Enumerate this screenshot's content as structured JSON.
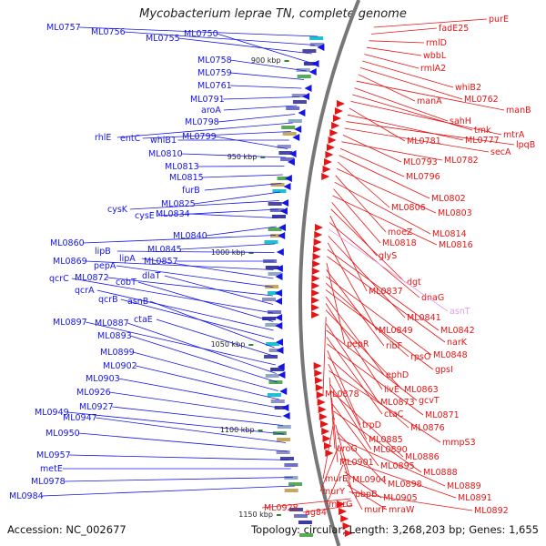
{
  "title": "Mycobacterium leprae TN, complete genome",
  "footer": {
    "accession": "Accession: NC_002677",
    "summary": "Topology: circular; Length: 3,268,203 bp; Genes: 1,655"
  },
  "colors": {
    "minus_strand": "#1414e6",
    "plus_strand": "#e61414",
    "backbone": "#777777",
    "scale_tick": "#2a8a2a"
  },
  "scale_labels": [
    "900 kbp",
    "950 kbp",
    "1000 kbp",
    "1050 kbp",
    "1100 kbp",
    "1150 kbp"
  ],
  "left_labels": [
    "ML0757",
    "ML0756",
    "ML0755",
    "ML0750",
    "ML0758",
    "ML0759",
    "ML0761",
    "ML0791",
    "aroA",
    "ML0798",
    "rhlE",
    "entC",
    "whiB1",
    "ML0799",
    "ML0810",
    "ML0813",
    "ML0815",
    "furB",
    "ML0825",
    "cysK",
    "cysE",
    "ML0834",
    "ML0840",
    "ML0860",
    "ML0845",
    "lipB",
    "ML0857",
    "ML0869",
    "lipA",
    "pepA",
    "ML0872",
    "dlaT",
    "qcrC",
    "cobT",
    "qcrA",
    "qcrB",
    "asnB",
    "ctaE",
    "ML0897",
    "ML0887",
    "ML0893",
    "ML0899",
    "ML0902",
    "ML0903",
    "ML0926",
    "ML0927",
    "ML0949",
    "ML0947",
    "ML0950",
    "ML0957",
    "metE",
    "ML0978",
    "ML0984"
  ],
  "right_labels": [
    "purE",
    "fadE25",
    "rmlD",
    "wbbL",
    "rmlA2",
    "whiB2",
    "ML0762",
    "manA",
    "manB",
    "sahH",
    "tmk",
    "mtrA",
    "ML0781",
    "ML0777",
    "lpqB",
    "secA",
    "ML0793",
    "ML0782",
    "ML0796",
    "ML0802",
    "ML0806",
    "ML0803",
    "moeZ",
    "ML0814",
    "ML0818",
    "ML0816",
    "glyS",
    "dgt",
    "ML0837",
    "dnaG",
    "asnT",
    "ML0841",
    "ML0849",
    "ML0842",
    "narK",
    "pepR",
    "ribF",
    "ML0848",
    "rpsO",
    "gpsI",
    "ephD",
    "ilvE",
    "ML0863",
    "ML0878",
    "ML0873",
    "gcvT",
    "ctaC",
    "ML0871",
    "trpD",
    "ML0876",
    "ML0885",
    "mmpS3",
    "aroG",
    "ML0890",
    "ML0886",
    "ML0901",
    "ML0895",
    "ML0888",
    "murE",
    "ML0904",
    "ML0898",
    "ML0889",
    "murY",
    "pbpB",
    "ML0891",
    "murG",
    "ML0905",
    "murF",
    "mraW",
    "ML0892",
    "ML0928",
    "ag84"
  ],
  "pale_labels": [
    "asnT"
  ]
}
